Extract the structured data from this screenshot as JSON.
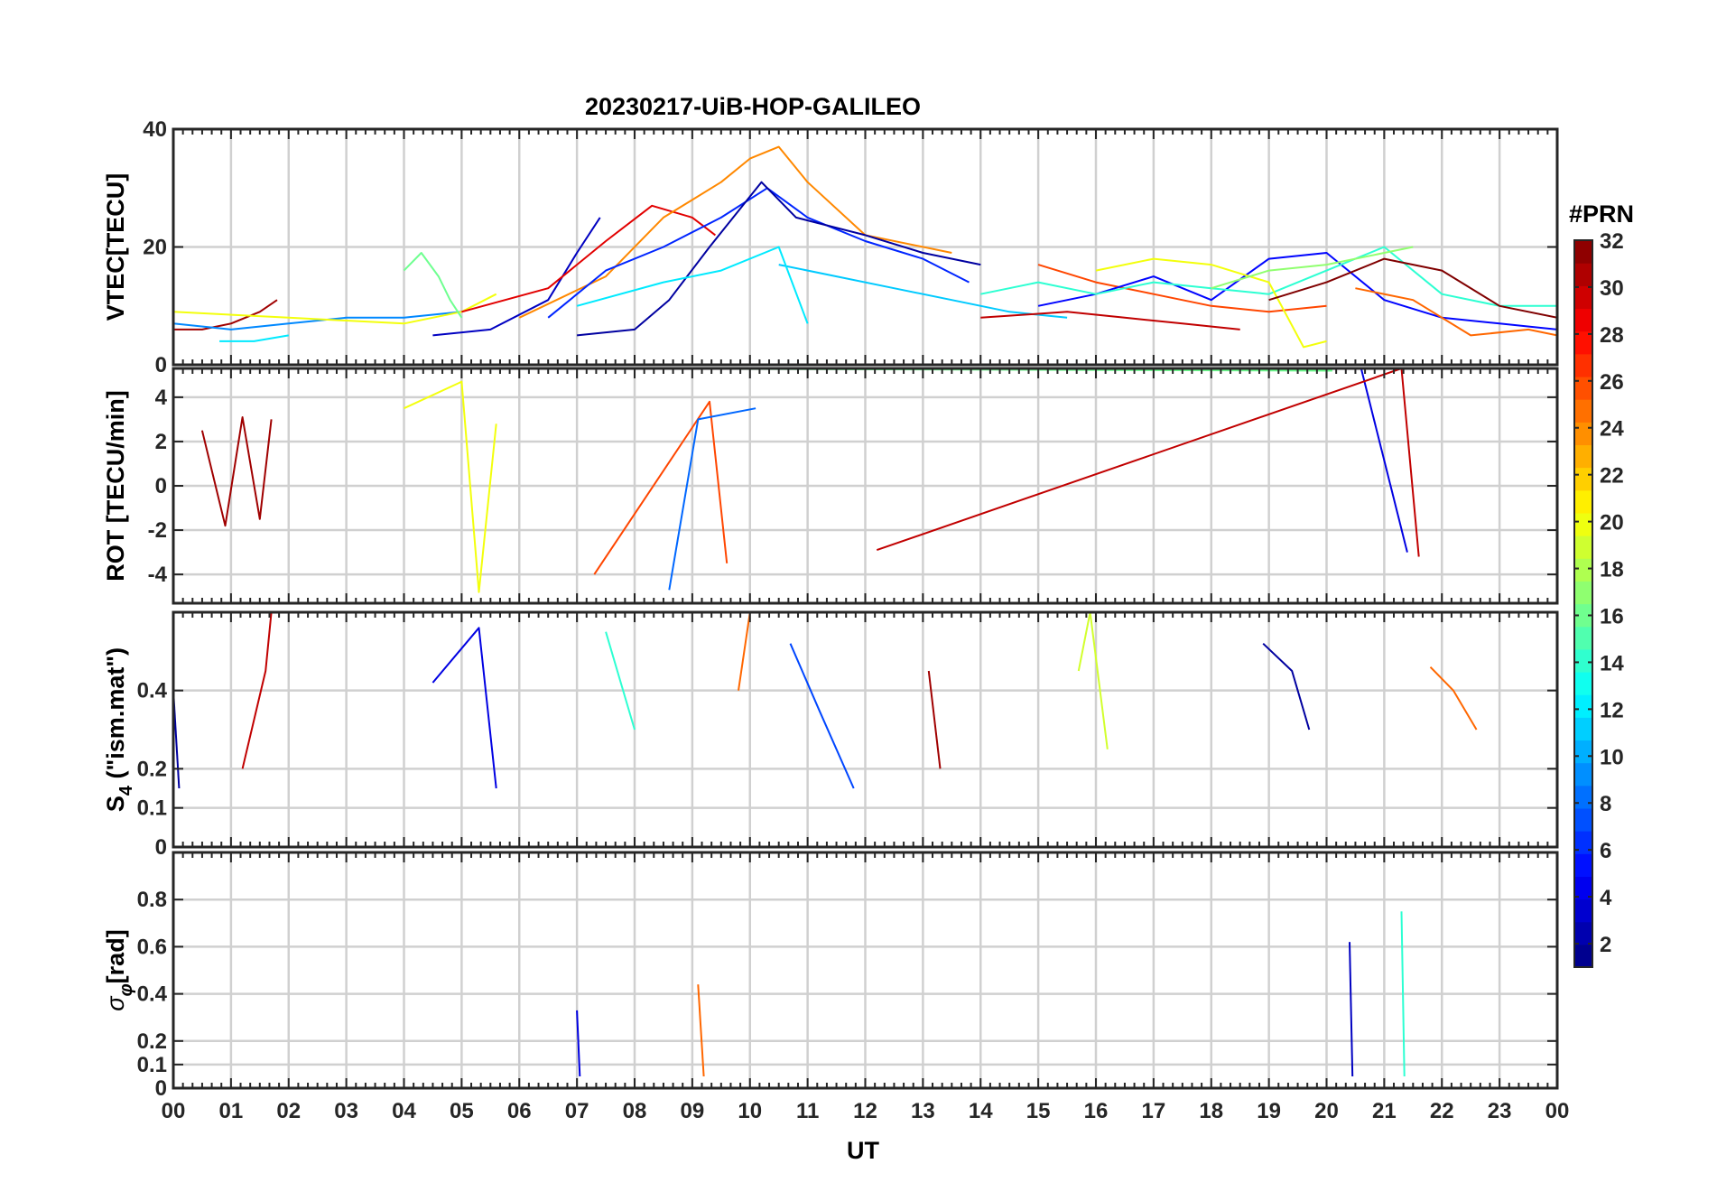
{
  "chart_data": [
    {
      "type": "line",
      "panel": "vtec",
      "title": "20230217-UiB-HOP-GALILEO",
      "ylabel": "VTEC[TECU]",
      "ylim": [
        0,
        40
      ],
      "yticks": [
        0,
        20,
        40
      ],
      "ytick_labels": [
        "0",
        "20",
        "40"
      ],
      "xlim": [
        0,
        24
      ],
      "grid": true,
      "series": [
        {
          "name": "PRN 31",
          "prn": 31,
          "x": [
            0,
            0.5,
            1.0,
            1.5,
            1.8
          ],
          "values": [
            6,
            6,
            7,
            9,
            11
          ]
        },
        {
          "name": "PRN 9",
          "prn": 9,
          "x": [
            0,
            1,
            2,
            3,
            4,
            5
          ],
          "values": [
            7,
            6,
            7,
            8,
            8,
            9
          ]
        },
        {
          "name": "PRN 12",
          "prn": 12,
          "x": [
            0.8,
            1.4,
            2.0
          ],
          "values": [
            4,
            4,
            5
          ]
        },
        {
          "name": "PRN 20",
          "prn": 20,
          "x": [
            0,
            2,
            4,
            5,
            5.6
          ],
          "values": [
            9,
            8,
            7,
            9,
            12
          ]
        },
        {
          "name": "PRN 16",
          "prn": 16,
          "x": [
            4.0,
            4.3,
            4.6,
            4.8,
            5.0
          ],
          "values": [
            16,
            19,
            15,
            11,
            8
          ]
        },
        {
          "name": "PRN 3",
          "prn": 3,
          "x": [
            4.5,
            5.5,
            6.5,
            7.0,
            7.4
          ],
          "values": [
            5,
            6,
            11,
            19,
            25
          ]
        },
        {
          "name": "PRN 29",
          "prn": 29,
          "x": [
            5,
            6.5,
            7.5,
            8.3,
            9.0,
            9.4
          ],
          "values": [
            9,
            13,
            21,
            27,
            25,
            22
          ]
        },
        {
          "name": "PRN 24",
          "prn": 24,
          "x": [
            6,
            7.5,
            8.5,
            9.5,
            10.0,
            10.5,
            11.0,
            12.0,
            13.5
          ],
          "values": [
            8,
            15,
            25,
            31,
            35,
            37,
            31,
            22,
            19
          ]
        },
        {
          "name": "PRN 6",
          "prn": 6,
          "x": [
            6.5,
            7.5,
            8.5,
            9.5,
            10.3,
            11,
            12,
            13,
            13.8
          ],
          "values": [
            8,
            16,
            20,
            25,
            30,
            25,
            21,
            18,
            14
          ]
        },
        {
          "name": "PRN 2",
          "prn": 2,
          "x": [
            7.0,
            8.0,
            8.6,
            9.3,
            10.2,
            10.8,
            12.0,
            13.0,
            14.0
          ],
          "values": [
            5,
            6,
            11,
            20,
            31,
            25,
            22,
            19,
            17
          ]
        },
        {
          "name": "PRN 11",
          "prn": 11,
          "x": [
            10.5,
            11.5,
            12.5,
            13.5,
            14.5,
            15.5
          ],
          "values": [
            17,
            15,
            13,
            11,
            9,
            8
          ]
        },
        {
          "name": "PRN 12b",
          "prn": 12,
          "x": [
            7.0,
            8.5,
            9.5,
            10.5,
            11.0
          ],
          "values": [
            10,
            14,
            16,
            20,
            7
          ]
        },
        {
          "name": "PRN 30",
          "prn": 30,
          "x": [
            14,
            15.5,
            16.5,
            17.5,
            18.5
          ],
          "values": [
            8,
            9,
            8,
            7,
            6
          ]
        },
        {
          "name": "PRN 26",
          "prn": 26,
          "x": [
            15,
            16,
            17,
            18,
            19,
            20
          ],
          "values": [
            17,
            14,
            12,
            10,
            9,
            10
          ]
        },
        {
          "name": "PRN 5",
          "prn": 5,
          "x": [
            15,
            16,
            17,
            18,
            19,
            20,
            21,
            22,
            23,
            24
          ],
          "values": [
            10,
            12,
            15,
            11,
            18,
            19,
            11,
            8,
            7,
            6
          ]
        },
        {
          "name": "PRN 14",
          "prn": 14,
          "x": [
            14,
            15,
            16,
            17,
            18,
            19,
            20,
            21,
            22,
            23,
            24
          ],
          "values": [
            12,
            14,
            12,
            14,
            13,
            12,
            16,
            20,
            12,
            10,
            10
          ]
        },
        {
          "name": "PRN 20b",
          "prn": 20,
          "x": [
            16,
            17,
            18,
            19,
            19.6,
            20
          ],
          "values": [
            16,
            18,
            17,
            14,
            3,
            4
          ]
        },
        {
          "name": "PRN 17",
          "prn": 17,
          "x": [
            18,
            19,
            20,
            21,
            21.5
          ],
          "values": [
            13,
            16,
            17,
            19,
            20
          ]
        },
        {
          "name": "PRN 32",
          "prn": 32,
          "x": [
            19,
            20,
            21,
            22,
            23,
            24
          ],
          "values": [
            11,
            14,
            18,
            16,
            10,
            8
          ]
        },
        {
          "name": "PRN 25",
          "prn": 25,
          "x": [
            20.5,
            21.5,
            22.5,
            23.5,
            24
          ],
          "values": [
            13,
            11,
            5,
            6,
            5
          ]
        }
      ]
    },
    {
      "type": "line",
      "panel": "rot",
      "ylabel": "ROT [TECU/min]",
      "ylim": [
        -5.3,
        5.3
      ],
      "yticks": [
        -4,
        -2,
        0,
        2,
        4
      ],
      "ytick_labels": [
        "-4",
        "-2",
        "0",
        "2",
        "4"
      ],
      "xlim": [
        0,
        24
      ],
      "grid": true,
      "series": [
        {
          "name": "PRN 31",
          "prn": 31,
          "x": [
            0.5,
            0.9,
            1.2,
            1.5,
            1.7
          ],
          "values": [
            2.5,
            -1.8,
            3.1,
            -1.5,
            3.0
          ]
        },
        {
          "name": "PRN 20",
          "prn": 20,
          "x": [
            4.0,
            5.0,
            5.3,
            5.6
          ],
          "values": [
            3.5,
            4.7,
            -4.8,
            2.8
          ]
        },
        {
          "name": "PRN 26",
          "prn": 26,
          "x": [
            7.3,
            9.3,
            9.6
          ],
          "values": [
            -4.0,
            3.8,
            -3.5
          ]
        },
        {
          "name": "PRN 8",
          "prn": 8,
          "x": [
            8.6,
            9.1,
            10.1
          ],
          "values": [
            -4.7,
            3.0,
            3.5
          ]
        },
        {
          "name": "PRN 16",
          "prn": 16,
          "x": [
            7.3,
            20.1
          ],
          "values": [
            5.3,
            5.2
          ]
        },
        {
          "name": "PRN 4",
          "prn": 4,
          "x": [
            20.6,
            21.4
          ],
          "values": [
            5.3,
            -3.0
          ]
        },
        {
          "name": "PRN 30",
          "prn": 30,
          "x": [
            12.2,
            21.3,
            21.6
          ],
          "values": [
            -2.9,
            5.3,
            -3.2
          ]
        }
      ]
    },
    {
      "type": "line",
      "panel": "s4",
      "ylabel": "S4 (\"ism.mat\")",
      "ylabel_main": "S",
      "ylabel_sub": "4",
      "ylabel_tail": " (\"ism.mat\")",
      "ylim": [
        0,
        0.6
      ],
      "yticks": [
        0,
        0.1,
        0.2,
        0.4
      ],
      "ytick_labels": [
        "0",
        "0.1",
        "0.2",
        "0.4"
      ],
      "xlim": [
        0,
        24
      ],
      "grid": true,
      "series": [
        {
          "name": "PRN 2",
          "prn": 2,
          "x": [
            0,
            0.1
          ],
          "values": [
            0.4,
            0.15
          ]
        },
        {
          "name": "PRN 30",
          "prn": 30,
          "x": [
            1.2,
            1.6,
            1.7
          ],
          "values": [
            0.2,
            0.45,
            0.6
          ]
        },
        {
          "name": "PRN 4",
          "prn": 4,
          "x": [
            4.5,
            5.3,
            5.6
          ],
          "values": [
            0.42,
            0.56,
            0.15
          ]
        },
        {
          "name": "PRN 14",
          "prn": 14,
          "x": [
            7.5,
            8.0
          ],
          "values": [
            0.55,
            0.3
          ]
        },
        {
          "name": "PRN 25",
          "prn": 25,
          "x": [
            9.8,
            10.0
          ],
          "values": [
            0.4,
            0.6
          ]
        },
        {
          "name": "PRN 7",
          "prn": 7,
          "x": [
            10.7,
            11.2,
            11.8
          ],
          "values": [
            0.52,
            0.35,
            0.15
          ]
        },
        {
          "name": "PRN 31",
          "prn": 31,
          "x": [
            13.1,
            13.3
          ],
          "values": [
            0.45,
            0.2
          ]
        },
        {
          "name": "PRN 19",
          "prn": 19,
          "x": [
            15.7,
            15.9,
            16.2
          ],
          "values": [
            0.45,
            0.6,
            0.25
          ]
        },
        {
          "name": "PRN 2b",
          "prn": 2,
          "x": [
            18.9,
            19.4,
            19.7
          ],
          "values": [
            0.52,
            0.45,
            0.3
          ]
        },
        {
          "name": "PRN 25b",
          "prn": 25,
          "x": [
            21.8,
            22.2,
            22.6
          ],
          "values": [
            0.46,
            0.4,
            0.3
          ]
        }
      ]
    },
    {
      "type": "line",
      "panel": "sigma",
      "ylabel": "σφ[rad]",
      "ylabel_main": "σ",
      "ylabel_sub": "φ",
      "ylabel_tail": "[rad]",
      "ylim": [
        0,
        1.0
      ],
      "yticks": [
        0,
        0.1,
        0.2,
        0.4,
        0.6,
        0.8
      ],
      "ytick_labels": [
        "0",
        "0.1",
        "0.2",
        "0.4",
        "0.6",
        "0.8"
      ],
      "xlim": [
        0,
        24
      ],
      "grid": true,
      "series": [
        {
          "name": "PRN 25",
          "prn": 25,
          "x": [
            9.1,
            9.2
          ],
          "values": [
            0.44,
            0.05
          ]
        },
        {
          "name": "PRN 3",
          "prn": 3,
          "x": [
            20.4,
            20.45
          ],
          "values": [
            0.62,
            0.05
          ]
        },
        {
          "name": "PRN 14",
          "prn": 14,
          "x": [
            21.3,
            21.35
          ],
          "values": [
            0.75,
            0.05
          ]
        },
        {
          "name": "PRN 4",
          "prn": 4,
          "x": [
            7.0,
            7.05
          ],
          "values": [
            0.33,
            0.05
          ]
        }
      ]
    }
  ],
  "xaxis": {
    "label": "UT",
    "tick_labels": [
      "00",
      "01",
      "02",
      "03",
      "04",
      "05",
      "06",
      "07",
      "08",
      "09",
      "10",
      "11",
      "12",
      "13",
      "14",
      "15",
      "16",
      "17",
      "18",
      "19",
      "20",
      "21",
      "22",
      "23",
      "00"
    ]
  },
  "colorbar": {
    "label": "#PRN",
    "min": 1,
    "max": 32,
    "tick_values": [
      2,
      4,
      6,
      8,
      10,
      12,
      14,
      16,
      18,
      20,
      22,
      24,
      26,
      28,
      30,
      32
    ],
    "tick_labels": [
      "2",
      "4",
      "6",
      "8",
      "10",
      "12",
      "14",
      "16",
      "18",
      "20",
      "22",
      "24",
      "26",
      "28",
      "30",
      "32"
    ],
    "colormap": "jet"
  }
}
